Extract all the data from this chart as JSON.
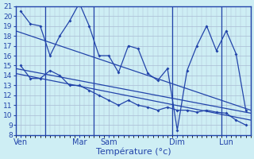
{
  "background_color": "#ceeef4",
  "grid_color": "#aabbd4",
  "line_color": "#2244aa",
  "xlabel": "Température (°c)",
  "ylim": [
    8,
    21
  ],
  "yticks": [
    8,
    9,
    10,
    11,
    12,
    13,
    14,
    15,
    16,
    17,
    18,
    19,
    20,
    21
  ],
  "xlim": [
    0,
    48
  ],
  "xtick_labels": [
    "Ven",
    "Mar",
    "Sam",
    "Dim",
    "Lun"
  ],
  "xtick_positions": [
    1,
    13,
    19,
    33,
    43
  ],
  "vline_positions": [
    6,
    16,
    32,
    42
  ],
  "series_max_x": [
    1,
    3,
    5,
    7,
    9,
    11,
    13,
    15,
    17,
    19,
    21,
    23,
    25,
    27,
    29,
    31,
    33,
    35,
    37,
    39,
    41,
    43,
    45,
    47
  ],
  "series_max_y": [
    20.5,
    19.2,
    19.0,
    16.0,
    18.0,
    19.5,
    21.3,
    19.0,
    16.0,
    16.0,
    14.3,
    17.0,
    16.7,
    14.2,
    13.5,
    14.7,
    8.5,
    14.5,
    17.0,
    19.0,
    16.5,
    18.5,
    16.2,
    10.5
  ],
  "series_min_x": [
    1,
    3,
    5,
    7,
    9,
    11,
    13,
    15,
    17,
    19,
    21,
    23,
    25,
    27,
    29,
    31,
    33,
    35,
    37,
    39,
    41,
    43,
    45,
    47
  ],
  "series_min_y": [
    15.0,
    13.7,
    13.7,
    14.5,
    14.0,
    13.0,
    13.0,
    12.5,
    12.0,
    11.5,
    11.0,
    11.5,
    11.0,
    10.8,
    10.5,
    10.8,
    10.5,
    10.5,
    10.3,
    10.5,
    10.3,
    10.2,
    9.5,
    9.0
  ],
  "trend1_x": [
    0,
    48
  ],
  "trend1_y": [
    18.5,
    10.5
  ],
  "trend2_x": [
    0,
    48
  ],
  "trend2_y": [
    14.7,
    10.2
  ],
  "trend3_x": [
    0,
    48
  ],
  "trend3_y": [
    14.2,
    9.5
  ]
}
